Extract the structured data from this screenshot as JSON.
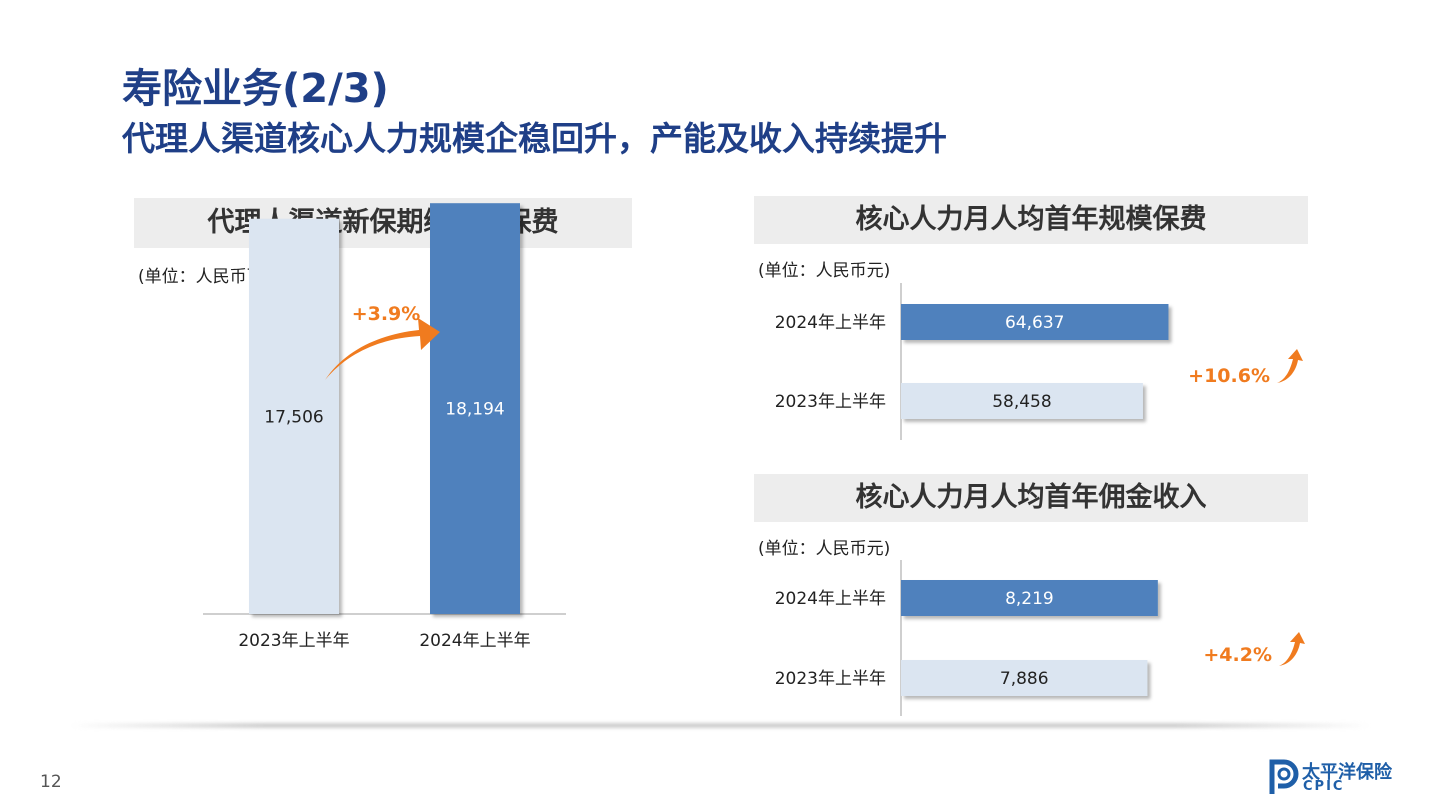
{
  "header": {
    "title": "寿险业务(2/3)",
    "subtitle": "代理人渠道核心人力规模企稳回升，产能及收入持续提升"
  },
  "colors": {
    "title": "#1f3f87",
    "bar_current": "#4f81bd",
    "bar_prior": "#dbe5f1",
    "growth": "#f07b1f"
  },
  "panels": {
    "left": {
      "heading": "代理人渠道新保期缴规模保费",
      "unit": "(单位：人民币百万元)"
    },
    "top_right": {
      "heading": "核心人力月人均首年规模保费",
      "unit": "(单位：人民币元)"
    },
    "bottom_right": {
      "heading": "核心人力月人均首年佣金收入",
      "unit": "(单位：人民币元)"
    }
  },
  "chart_data": [
    {
      "type": "bar",
      "title": "代理人渠道新保期缴规模保费",
      "unit": "(单位：人民币百万元)",
      "categories": [
        "2023年上半年",
        "2024年上半年"
      ],
      "values": [
        17506,
        18194
      ],
      "value_labels": [
        "17,506",
        "18,194"
      ],
      "growth": "+3.9%"
    },
    {
      "type": "bar",
      "orientation": "horizontal",
      "title": "核心人力月人均首年规模保费",
      "unit": "(单位：人民币元)",
      "categories": [
        "2024年上半年",
        "2023年上半年"
      ],
      "values": [
        64637,
        58458
      ],
      "value_labels": [
        "64,637",
        "58,458"
      ],
      "growth": "+10.6%"
    },
    {
      "type": "bar",
      "orientation": "horizontal",
      "title": "核心人力月人均首年佣金收入",
      "unit": "(单位：人民币元)",
      "categories": [
        "2024年上半年",
        "2023年上半年"
      ],
      "values": [
        8219,
        7886
      ],
      "value_labels": [
        "8,219",
        "7,886"
      ],
      "growth": "+4.2%"
    }
  ],
  "footer": {
    "page_number": "12",
    "logo_cn": "太平洋保险",
    "logo_en": "CPIC"
  }
}
